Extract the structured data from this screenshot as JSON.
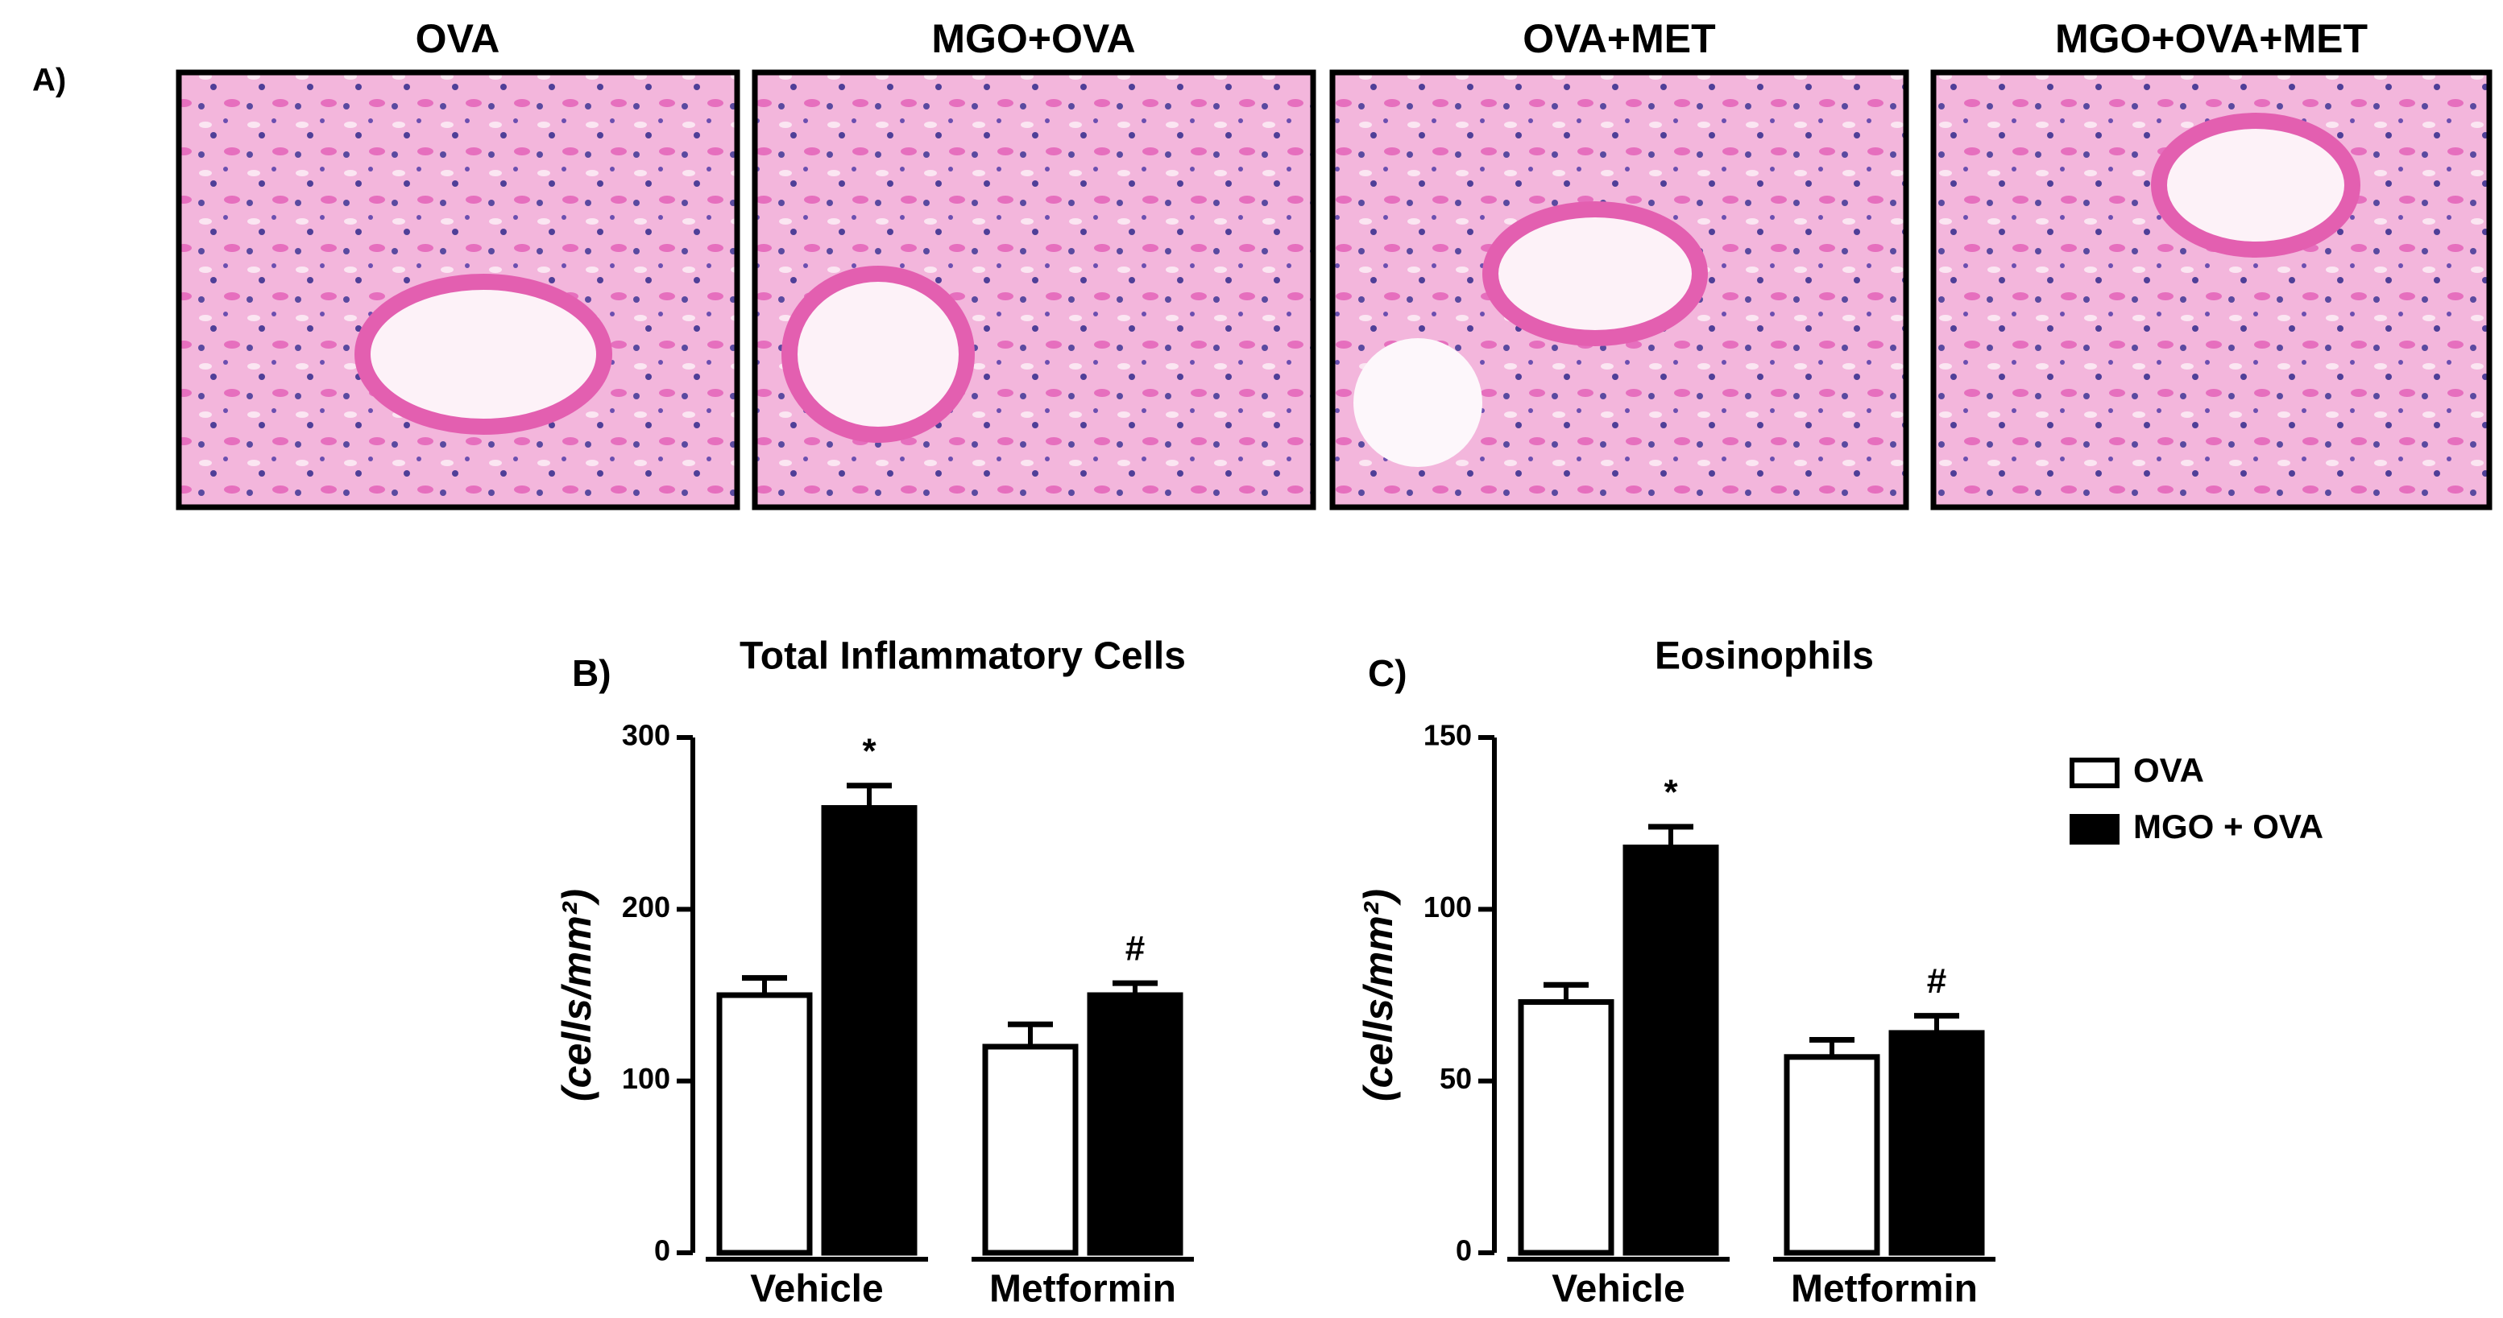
{
  "panel_a": {
    "label": "A)",
    "images": [
      {
        "title": "OVA"
      },
      {
        "title": "MGO+OVA"
      },
      {
        "title": "OVA+MET"
      },
      {
        "title": "MGO+OVA+MET"
      }
    ]
  },
  "chart_data": [
    {
      "type": "bar",
      "panel_label": "B)",
      "title": "Total Inflammatory Cells",
      "y_label": "(cells/mm²)",
      "categories": [
        "Vehicle",
        "Metformin"
      ],
      "ylim": [
        0,
        300
      ],
      "yticks": [
        0,
        100,
        200,
        300
      ],
      "series": [
        {
          "name": "OVA",
          "color": "#ffffff",
          "values": [
            150,
            120
          ],
          "errors": [
            10,
            13
          ],
          "markers": [
            null,
            null
          ]
        },
        {
          "name": "MGO + OVA",
          "color": "#000000",
          "values": [
            259,
            150
          ],
          "errors": [
            13,
            7
          ],
          "markers": [
            "*",
            "#"
          ]
        }
      ]
    },
    {
      "type": "bar",
      "panel_label": "C)",
      "title": "Eosinophils",
      "y_label": "(cells/mm²)",
      "categories": [
        "Vehicle",
        "Metformin"
      ],
      "ylim": [
        0,
        150
      ],
      "yticks": [
        0,
        50,
        100,
        150
      ],
      "legend": "right",
      "series": [
        {
          "name": "OVA",
          "color": "#ffffff",
          "values": [
            73,
            57
          ],
          "errors": [
            5,
            5
          ],
          "markers": [
            null,
            null
          ]
        },
        {
          "name": "MGO + OVA",
          "color": "#000000",
          "values": [
            118,
            64
          ],
          "errors": [
            6,
            5
          ],
          "markers": [
            "*",
            "#"
          ]
        }
      ]
    }
  ]
}
